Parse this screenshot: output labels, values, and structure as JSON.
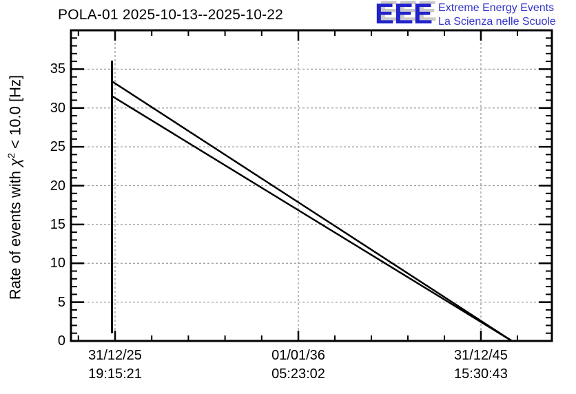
{
  "header": {
    "title": "POLA-01 2025-10-13--2025-10-22"
  },
  "logo": {
    "acronym": "EEE",
    "line1": "Extreme Energy Events",
    "line2": "La Scienza nelle Scuole",
    "accent_color": "#2222cc",
    "shadow_color": "#c9c9c9"
  },
  "colors": {
    "axis": "#000000",
    "grid": "#999999",
    "data_line": "#000000",
    "background": "#ffffff"
  },
  "y_axis": {
    "label_prefix": "Rate of events with ",
    "label_chi": "χ",
    "label_sup": "2",
    "label_suffix": " < 10.0 [Hz]",
    "major_ticks": [
      0,
      5,
      10,
      15,
      20,
      25,
      30,
      35
    ],
    "minor_step": 1,
    "max": 40
  },
  "x_axis": {
    "major_ticks": [
      {
        "date": "31/12/25",
        "time": "19:15:21",
        "frac": 0.0917
      },
      {
        "date": "01/01/36",
        "time": "05:23:02",
        "frac": 0.4728
      },
      {
        "date": "31/12/45",
        "time": "15:30:43",
        "frac": 0.8524
      }
    ],
    "minor_divisions_per_major": 5
  },
  "chart_data": {
    "type": "line",
    "title": "POLA-01 2025-10-13--2025-10-22",
    "ylabel": "Rate of events with chi^2 < 10.0 [Hz]",
    "xlabel": "",
    "ylim": [
      0,
      40
    ],
    "y_major_ticks": [
      0,
      5,
      10,
      15,
      20,
      25,
      30,
      35
    ],
    "x_tick_labels": [
      "31/12/25 19:15:21",
      "01/01/36 05:23:02",
      "31/12/45 15:30:43"
    ],
    "grid": "dashed gray at major ticks, horizontal and vertical",
    "legend": "none",
    "series": [
      {
        "name": "initial-spike",
        "style": "vertical-segment",
        "x_frac": 0.0852,
        "y_from": 1.0,
        "y_to": 36.1
      },
      {
        "name": "upper-declining-line",
        "style": "line",
        "points": [
          {
            "x_frac": 0.086,
            "y": 33.4
          },
          {
            "x_frac": 0.917,
            "y": 0.0
          }
        ]
      },
      {
        "name": "lower-declining-line",
        "style": "line",
        "points": [
          {
            "x_frac": 0.086,
            "y": 31.5
          },
          {
            "x_frac": 0.917,
            "y": 0.0
          }
        ]
      }
    ]
  }
}
